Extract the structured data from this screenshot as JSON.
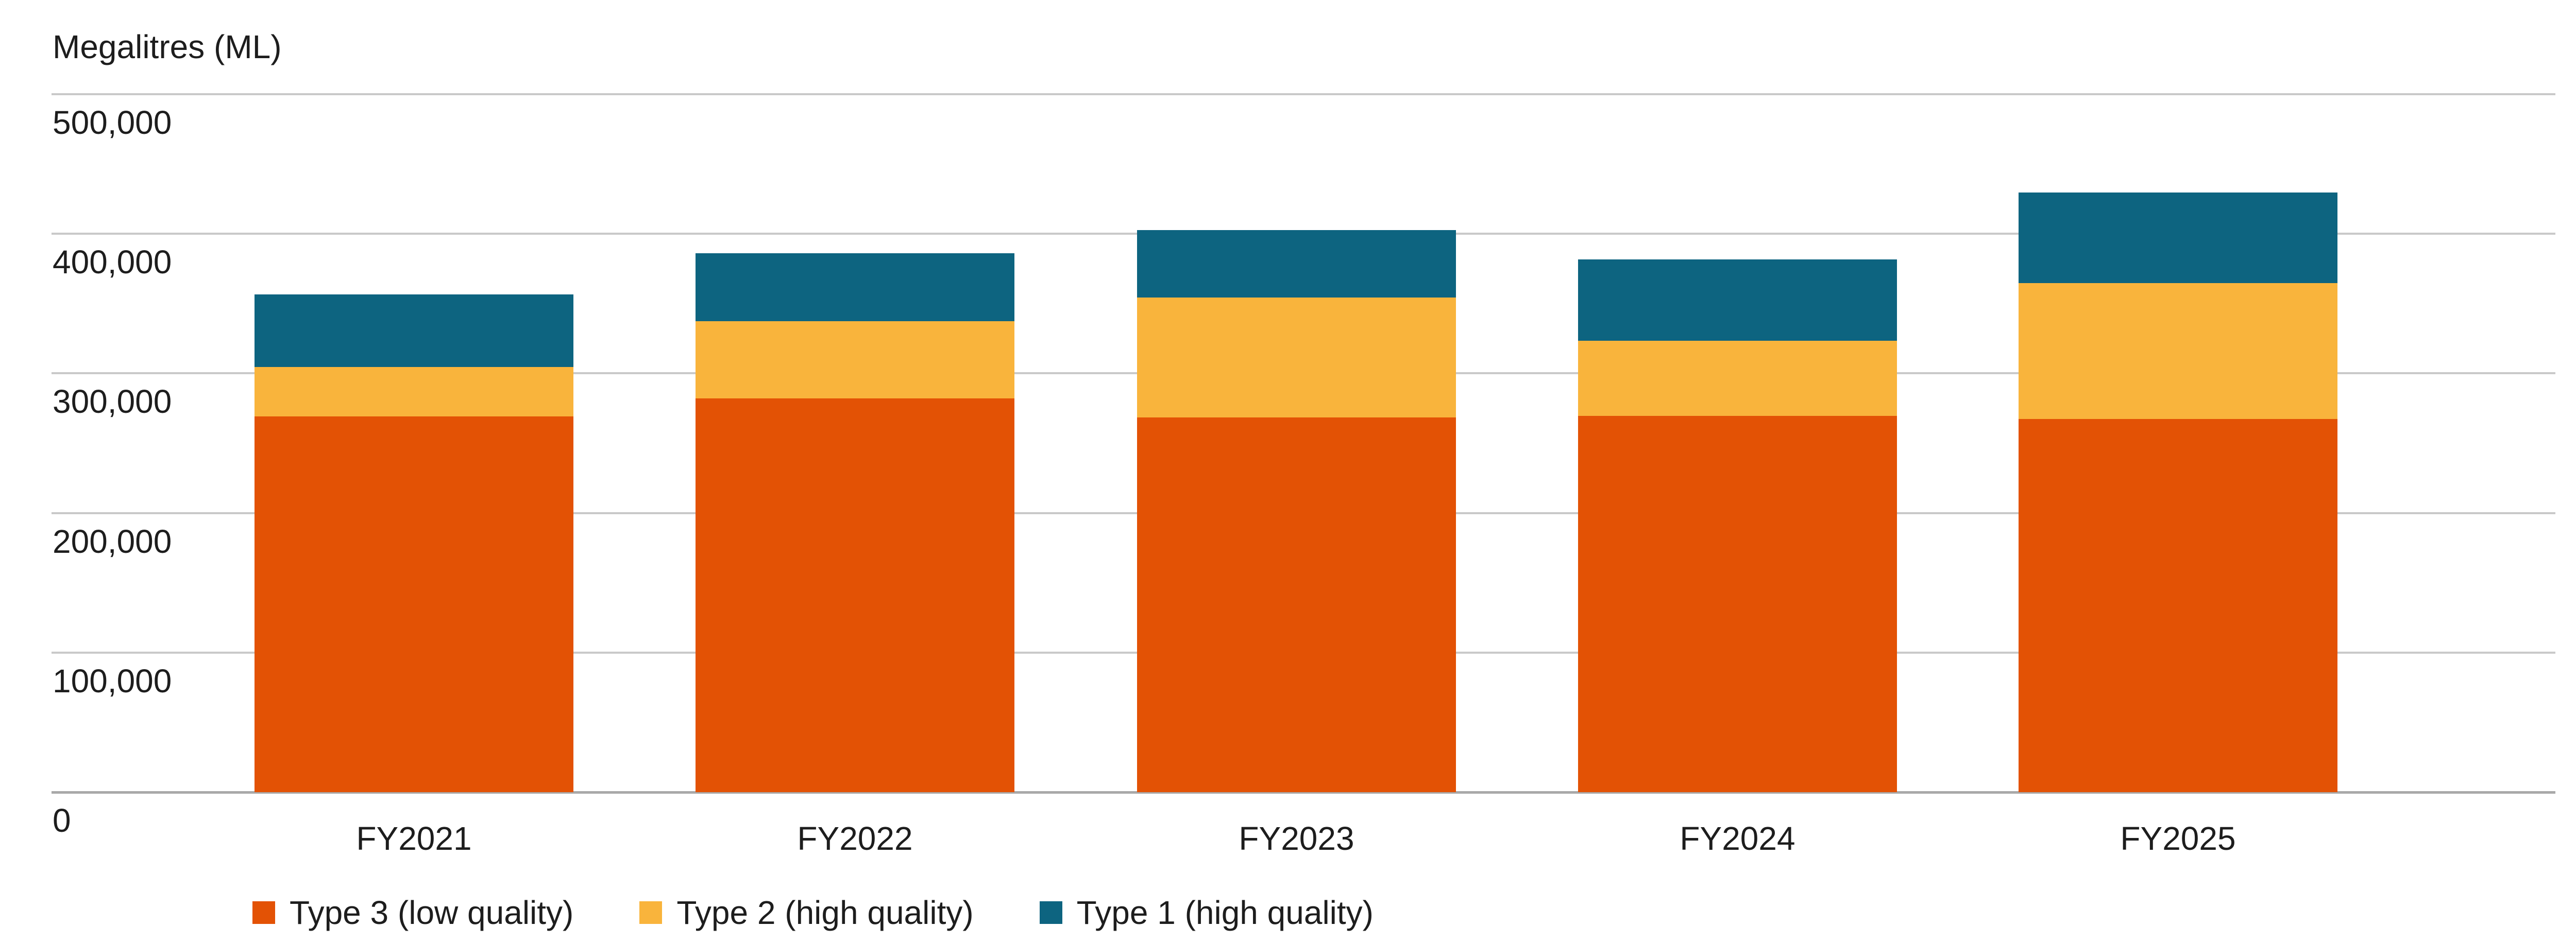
{
  "axis_title": "Megalitres (ML)",
  "text_color": "#1d1d1d",
  "gridline_color": "#c9c9c9",
  "baseline_color": "#a9a9a9",
  "chart_data": {
    "type": "bar",
    "stacked": true,
    "title": "",
    "ylabel": "Megalitres (ML)",
    "xlabel": "",
    "ylim": [
      0,
      500000
    ],
    "ytick_step": 100000,
    "grid": "horizontal-only",
    "legend_position": "bottom-left",
    "categories": [
      "FY2021",
      "FY2022",
      "FY2023",
      "FY2024",
      "FY2025"
    ],
    "series": [
      {
        "name": "Type 3 (low quality)",
        "color": "#E35205",
        "values": [
          269000,
          282000,
          268500,
          269500,
          267500
        ]
      },
      {
        "name": "Type 2 (high quality)",
        "color": "#F9B43C",
        "values": [
          35500,
          55500,
          86000,
          54000,
          97000
        ]
      },
      {
        "name": "Type 1 (high quality)",
        "color": "#0D6480",
        "values": [
          52000,
          48500,
          48000,
          58000,
          65000
        ]
      }
    ],
    "totals": [
      356500,
      386000,
      402500,
      381500,
      429500
    ],
    "y_ticks": [
      {
        "label": "500,000",
        "value": 500000
      },
      {
        "label": "400,000",
        "value": 400000
      },
      {
        "label": "300,000",
        "value": 300000
      },
      {
        "label": "200,000",
        "value": 200000
      },
      {
        "label": "100,000",
        "value": 100000
      },
      {
        "label": "0",
        "value": 0
      }
    ]
  }
}
